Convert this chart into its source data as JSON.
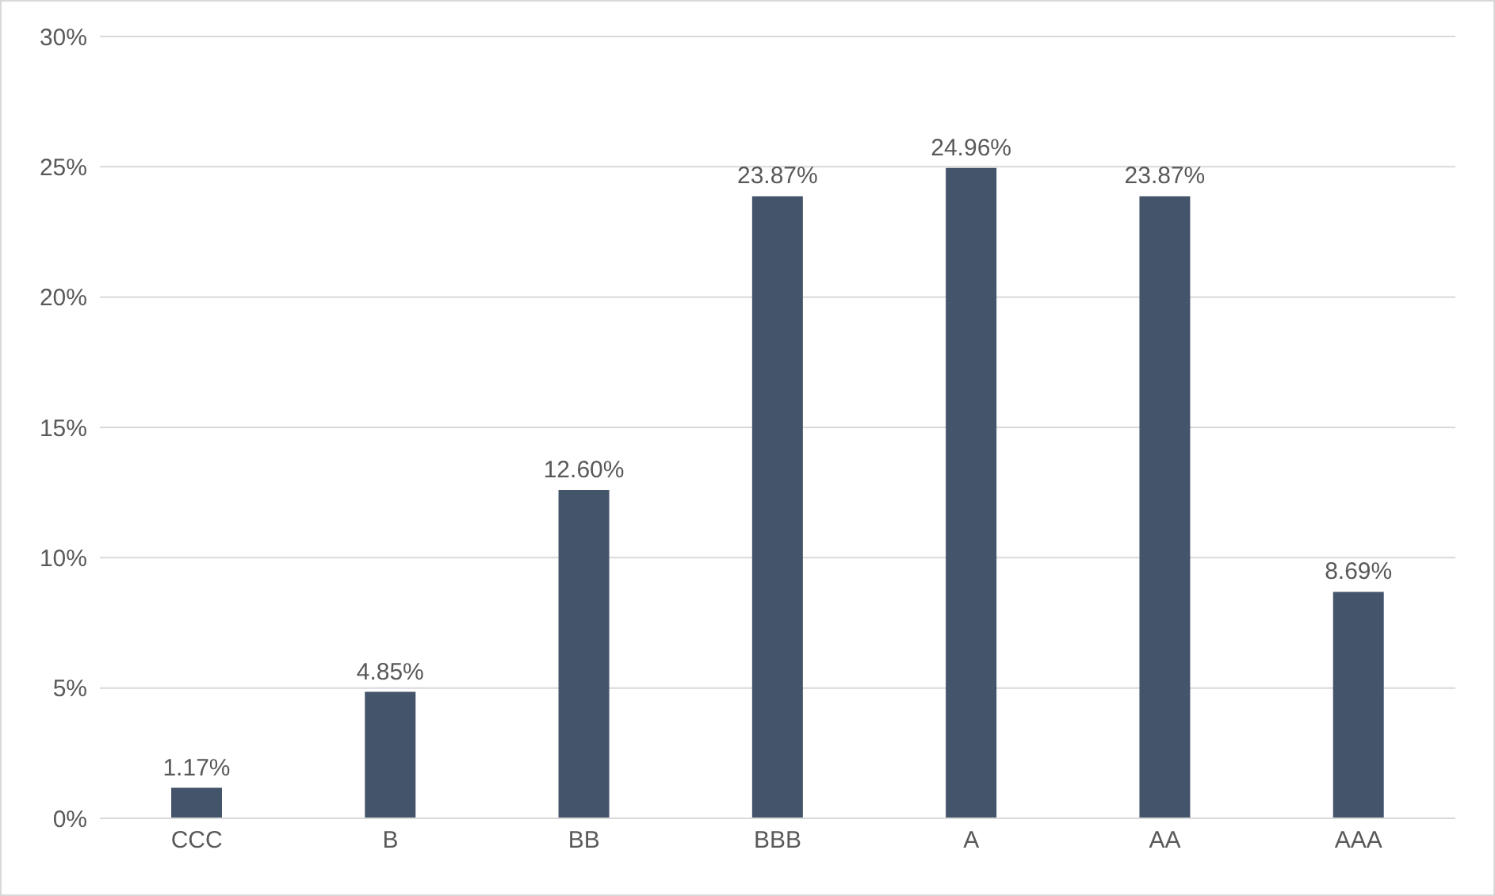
{
  "chart_data": {
    "type": "bar",
    "categories": [
      "CCC",
      "B",
      "BB",
      "BBB",
      "A",
      "AA",
      "AAA"
    ],
    "values": [
      1.17,
      4.85,
      12.6,
      23.87,
      24.96,
      23.87,
      8.69
    ],
    "value_labels": [
      "1.17%",
      "4.85%",
      "12.60%",
      "23.87%",
      "24.96%",
      "23.87%",
      "8.69%"
    ],
    "color": "#44546a",
    "ylim": [
      0,
      30
    ],
    "yticks": [
      {
        "value": 0,
        "label": "0%"
      },
      {
        "value": 5,
        "label": "5%"
      },
      {
        "value": 10,
        "label": "10%"
      },
      {
        "value": 15,
        "label": "15%"
      },
      {
        "value": 20,
        "label": "20%"
      },
      {
        "value": 25,
        "label": "25%"
      },
      {
        "value": 30,
        "label": "30%"
      }
    ],
    "grid": "y",
    "legend": false
  }
}
